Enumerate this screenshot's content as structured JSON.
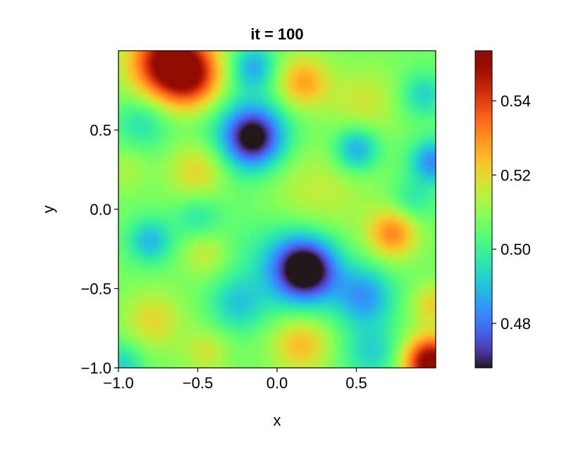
{
  "chart_data": {
    "type": "heatmap",
    "title": "it = 100",
    "xlabel": "x",
    "ylabel": "y",
    "xlim": [
      -1.0,
      1.0
    ],
    "ylim": [
      -1.0,
      1.0
    ],
    "xticks": [
      {
        "value": -1.0,
        "label": "−1.0"
      },
      {
        "value": -0.5,
        "label": "−0.5"
      },
      {
        "value": 0.0,
        "label": "0.0"
      },
      {
        "value": 0.5,
        "label": "0.5"
      }
    ],
    "yticks": [
      {
        "value": -1.0,
        "label": "−1.0"
      },
      {
        "value": -0.5,
        "label": "−0.5"
      },
      {
        "value": 0.0,
        "label": "0.0"
      },
      {
        "value": 0.5,
        "label": "0.5"
      }
    ],
    "colormap": "turbo",
    "colorbar": {
      "range": [
        0.468,
        0.5535
      ],
      "ticks": [
        {
          "value": 0.48,
          "label": "0.48"
        },
        {
          "value": 0.5,
          "label": "0.50"
        },
        {
          "value": 0.52,
          "label": "0.52"
        },
        {
          "value": 0.54,
          "label": "0.54"
        }
      ]
    },
    "field_baseline": 0.507,
    "features": [
      {
        "x": -0.68,
        "y": 0.93,
        "amp": 0.046,
        "r": 0.17
      },
      {
        "x": -0.52,
        "y": 0.82,
        "amp": 0.024,
        "r": 0.14
      },
      {
        "x": -0.15,
        "y": 0.45,
        "amp": -0.036,
        "r": 0.13
      },
      {
        "x": -0.2,
        "y": 0.5,
        "amp": -0.01,
        "r": 0.25
      },
      {
        "x": 0.18,
        "y": -0.38,
        "amp": -0.041,
        "r": 0.14
      },
      {
        "x": 0.08,
        "y": -0.3,
        "amp": -0.014,
        "r": 0.24
      },
      {
        "x": 0.73,
        "y": -0.15,
        "amp": 0.024,
        "r": 0.11
      },
      {
        "x": 0.97,
        "y": -0.97,
        "amp": 0.048,
        "r": 0.12
      },
      {
        "x": 0.98,
        "y": -0.6,
        "amp": 0.014,
        "r": 0.09
      },
      {
        "x": 0.16,
        "y": 0.8,
        "amp": 0.022,
        "r": 0.12
      },
      {
        "x": -0.5,
        "y": 0.25,
        "amp": 0.016,
        "r": 0.13
      },
      {
        "x": 0.2,
        "y": 0.05,
        "amp": 0.012,
        "r": 0.25
      },
      {
        "x": 0.55,
        "y": 0.68,
        "amp": 0.01,
        "r": 0.15
      },
      {
        "x": -0.78,
        "y": -0.7,
        "amp": 0.013,
        "r": 0.13
      },
      {
        "x": 0.15,
        "y": -0.85,
        "amp": 0.018,
        "r": 0.13
      },
      {
        "x": -0.45,
        "y": -0.28,
        "amp": 0.01,
        "r": 0.1
      },
      {
        "x": -0.45,
        "y": -0.9,
        "amp": 0.01,
        "r": 0.1
      },
      {
        "x": -0.8,
        "y": -0.2,
        "amp": -0.018,
        "r": 0.1
      },
      {
        "x": -0.85,
        "y": 0.55,
        "amp": -0.012,
        "r": 0.12
      },
      {
        "x": -0.15,
        "y": 0.9,
        "amp": -0.018,
        "r": 0.1
      },
      {
        "x": 0.5,
        "y": 0.38,
        "amp": -0.022,
        "r": 0.1
      },
      {
        "x": 0.98,
        "y": 0.3,
        "amp": -0.024,
        "r": 0.1
      },
      {
        "x": 0.55,
        "y": -0.55,
        "amp": -0.022,
        "r": 0.13
      },
      {
        "x": 0.92,
        "y": 0.72,
        "amp": -0.014,
        "r": 0.1
      },
      {
        "x": -0.25,
        "y": -0.6,
        "amp": -0.014,
        "r": 0.12
      },
      {
        "x": 0.6,
        "y": -0.9,
        "amp": -0.014,
        "r": 0.13
      },
      {
        "x": -0.98,
        "y": -0.98,
        "amp": -0.014,
        "r": 0.1
      },
      {
        "x": -0.5,
        "y": -0.05,
        "amp": -0.01,
        "r": 0.1
      },
      {
        "x": 0.85,
        "y": 0.05,
        "amp": -0.01,
        "r": 0.1
      },
      {
        "x": -0.95,
        "y": 0.25,
        "amp": 0.006,
        "r": 0.1
      }
    ]
  }
}
